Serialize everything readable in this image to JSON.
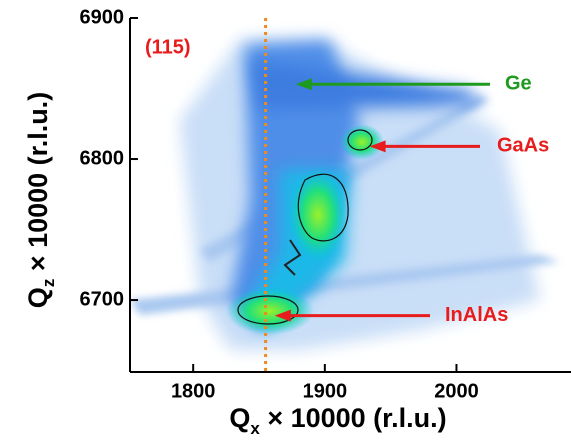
{
  "chart_data": {
    "type": "rsm",
    "panel_label": "(115)",
    "x_label": {
      "main": "Q",
      "sub": "x",
      "rest": " × 10000 (r.l.u.)"
    },
    "y_label": {
      "main": "Q",
      "sub": "z",
      "rest": " × 10000 (r.l.u.)"
    },
    "xlim": [
      1752,
      2087
    ],
    "ylim": [
      6649,
      6900
    ],
    "xticks": [
      1800,
      1900,
      2000
    ],
    "yticks": [
      6700,
      6800,
      6900
    ],
    "reference_line": {
      "x": 1855,
      "color": "#f08a1c"
    },
    "annotations": [
      {
        "text": "Ge",
        "x": 1878,
        "y": 6853,
        "color": "#1e9a1e"
      },
      {
        "text": "GaAs",
        "x": 1934,
        "y": 6809,
        "color": "#e81c1c"
      },
      {
        "text": "InAlAs",
        "x": 1862,
        "y": 6689,
        "color": "#e81c1c"
      }
    ]
  }
}
